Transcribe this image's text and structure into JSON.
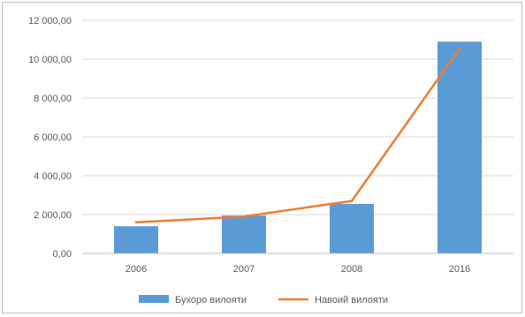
{
  "chart_data": {
    "type": "bar",
    "categories": [
      "2006",
      "2007",
      "2008",
      "2016"
    ],
    "series": [
      {
        "name": "Бухоро вилояти",
        "kind": "bar",
        "color": "#5b9bd5",
        "values": [
          1400,
          1950,
          2550,
          10900
        ]
      },
      {
        "name": "Навоий вилояти",
        "kind": "line",
        "color": "#ed7d31",
        "values": [
          1600,
          1900,
          2700,
          10550
        ]
      }
    ],
    "yticks": [
      {
        "value": 0,
        "label": "0,00"
      },
      {
        "value": 2000,
        "label": "2 000,00"
      },
      {
        "value": 4000,
        "label": "4 000,00"
      },
      {
        "value": 6000,
        "label": "6 000,00"
      },
      {
        "value": 8000,
        "label": "8 000,00"
      },
      {
        "value": 10000,
        "label": "10 000,00"
      },
      {
        "value": 12000,
        "label": "12 000,00"
      }
    ],
    "ylim": [
      0,
      12000
    ],
    "grid": true,
    "legend": "bottom",
    "title": "",
    "xlabel": "",
    "ylabel": ""
  }
}
